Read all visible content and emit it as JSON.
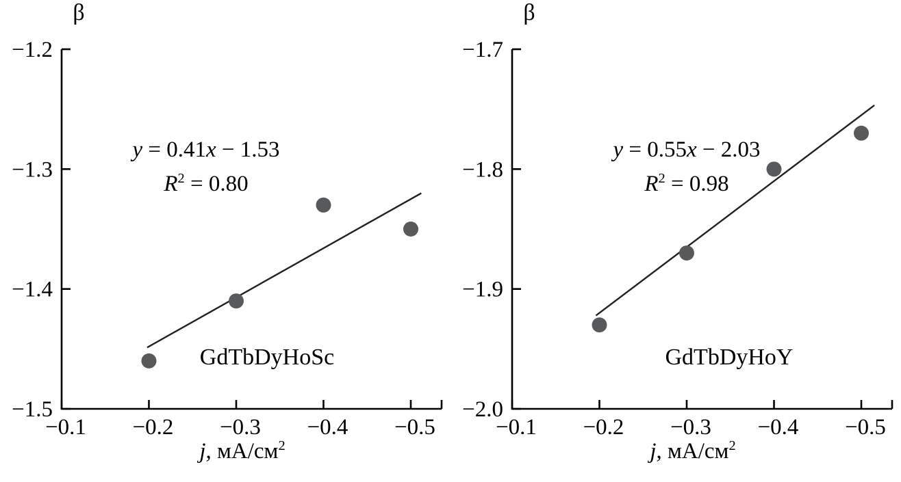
{
  "figure": {
    "background": "#ffffff"
  },
  "chart_data": [
    {
      "type": "scatter",
      "panel": "left",
      "series_label": "GdTbDyHoSc",
      "ylabel": "β",
      "xlabel": "j, мА/см²",
      "xlabel_parts": {
        "var": "j",
        "main": ", мА/см",
        "sup": "2"
      },
      "xlim": [
        -0.1,
        -0.5
      ],
      "ylim": [
        -1.2,
        -1.5
      ],
      "grid": false,
      "legend": "none",
      "x_ticks": [
        {
          "v": -0.1,
          "label": "−0.1"
        },
        {
          "v": -0.2,
          "label": "−0.2"
        },
        {
          "v": -0.3,
          "label": "−0.3"
        },
        {
          "v": -0.4,
          "label": "−0.4"
        },
        {
          "v": -0.5,
          "label": "−0.5"
        }
      ],
      "y_ticks": [
        {
          "v": -1.2,
          "label": "−1.2"
        },
        {
          "v": -1.3,
          "label": "−1.3"
        },
        {
          "v": -1.4,
          "label": "−1.4"
        },
        {
          "v": -1.5,
          "label": "−1.5"
        }
      ],
      "points": [
        {
          "x": -0.2,
          "y": -1.46
        },
        {
          "x": -0.3,
          "y": -1.41
        },
        {
          "x": -0.4,
          "y": -1.33
        },
        {
          "x": -0.5,
          "y": -1.35
        }
      ],
      "fit_line": {
        "slope": 0.41,
        "intercept": -1.53,
        "abs_x": true,
        "r_squared": 0.8,
        "x_start": -0.198,
        "x_end": -0.512
      },
      "annotation": {
        "eq_y": "y",
        "eq_mid": " = 0.41",
        "eq_x": "x",
        "eq_tail": " − 1.53",
        "r": "R",
        "r_sup": "2",
        "r_tail": " = 0.80"
      },
      "style": {
        "point_color": "#58595b",
        "line_color": "#231f20",
        "axis_color": "#000000",
        "point_radius": 11
      }
    },
    {
      "type": "scatter",
      "panel": "right",
      "series_label": "GdTbDyHoY",
      "ylabel": "β",
      "xlabel": "j, мА/см²",
      "xlabel_parts": {
        "var": "j",
        "main": ", мА/см",
        "sup": "2"
      },
      "xlim": [
        -0.1,
        -0.5
      ],
      "ylim": [
        -1.7,
        -2.0
      ],
      "grid": false,
      "legend": "none",
      "x_ticks": [
        {
          "v": -0.1,
          "label": "−0.1"
        },
        {
          "v": -0.2,
          "label": "−0.2"
        },
        {
          "v": -0.3,
          "label": "−0.3"
        },
        {
          "v": -0.4,
          "label": "−0.4"
        },
        {
          "v": -0.5,
          "label": "−0.5"
        }
      ],
      "y_ticks": [
        {
          "v": -1.7,
          "label": "−1.7"
        },
        {
          "v": -1.8,
          "label": "−1.8"
        },
        {
          "v": -1.9,
          "label": "−1.9"
        },
        {
          "v": -2.0,
          "label": "−2.0"
        }
      ],
      "points": [
        {
          "x": -0.2,
          "y": -1.93
        },
        {
          "x": -0.3,
          "y": -1.87
        },
        {
          "x": -0.4,
          "y": -1.8
        },
        {
          "x": -0.5,
          "y": -1.77
        }
      ],
      "fit_line": {
        "slope": 0.55,
        "intercept": -2.03,
        "abs_x": true,
        "r_squared": 0.98,
        "x_start": -0.196,
        "x_end": -0.515
      },
      "annotation": {
        "eq_y": "y",
        "eq_mid": " = 0.55",
        "eq_x": "x",
        "eq_tail": " − 2.03",
        "r": "R",
        "r_sup": "2",
        "r_tail": " = 0.98"
      },
      "style": {
        "point_color": "#58595b",
        "line_color": "#231f20",
        "axis_color": "#000000",
        "point_radius": 11
      }
    }
  ]
}
